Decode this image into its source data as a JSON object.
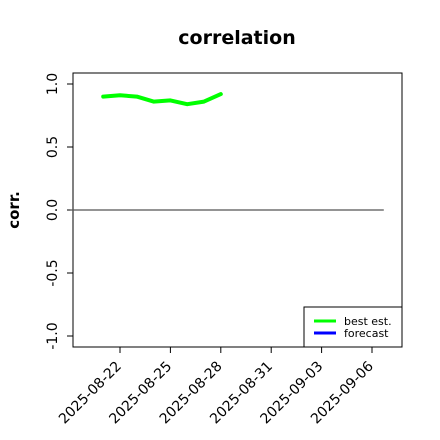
{
  "chart_data": {
    "type": "line",
    "title": "correlation",
    "xlabel": "",
    "ylabel": "corr.",
    "ylim": [
      -1.05,
      1.05
    ],
    "yticks": [
      -1.0,
      -0.5,
      0.0,
      0.5,
      1.0
    ],
    "ytick_labels": [
      "-1.0",
      "-0.5",
      "0.0",
      "0.5",
      "1.0"
    ],
    "xlim": [
      "2025-08-19",
      "2025-09-07"
    ],
    "xticks": [
      "2025-08-22",
      "2025-08-25",
      "2025-08-28",
      "2025-08-31",
      "2025-09-03",
      "2025-09-06"
    ],
    "xtick_colors": [
      "#000000",
      "#000000",
      "#228b22",
      "#000000",
      "#000000",
      "#000000"
    ],
    "reference_line": {
      "y": 0.0,
      "x_start": "2025-08-20",
      "x_end": "2025-09-07",
      "color": "#555555"
    },
    "series": [
      {
        "name": "best est.",
        "color": "#00ff00",
        "x": [
          "2025-08-21",
          "2025-08-22",
          "2025-08-23",
          "2025-08-24",
          "2025-08-25",
          "2025-08-26",
          "2025-08-27",
          "2025-08-28"
        ],
        "values": [
          0.9,
          0.91,
          0.9,
          0.86,
          0.87,
          0.84,
          0.86,
          0.92
        ]
      },
      {
        "name": "forecast",
        "color": "#0000ff",
        "x": [],
        "values": []
      }
    ],
    "legend_position": "bottom-right",
    "grid": false
  }
}
